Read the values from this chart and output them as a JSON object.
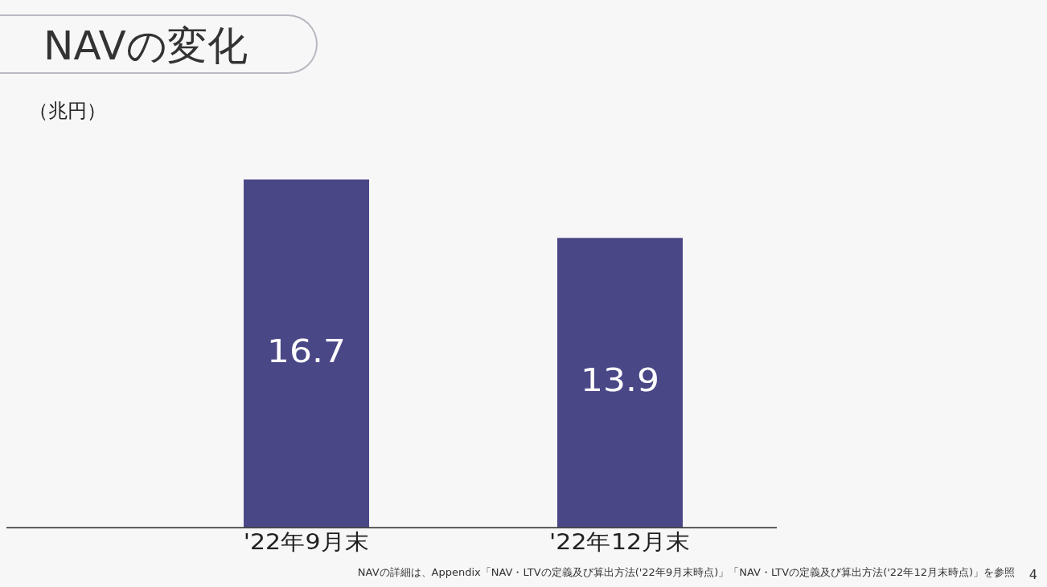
{
  "chart_data": {
    "type": "bar",
    "title": "NAVの変化",
    "ylabel": "（兆円）",
    "categories": [
      "'22年9月末",
      "'22年12月末"
    ],
    "values": [
      16.7,
      13.9
    ],
    "color": "#4a4787",
    "data_labels": true,
    "tick_labels": "x",
    "grid": false,
    "legend": false,
    "annotations": [
      "NAVの詳細は、Appendix「NAV・LTVの定義及び算出方法('22年9月末時点)」「NAV・LTVの定義及び算出方法('22年12月末時点)」を参照",
      "4"
    ]
  }
}
